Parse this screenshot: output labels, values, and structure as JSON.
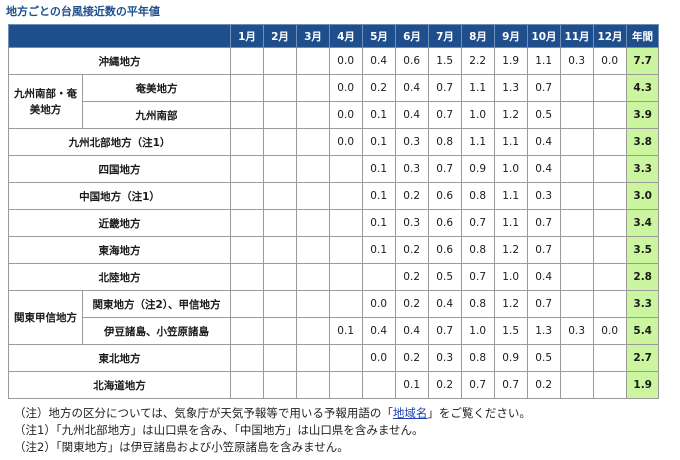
{
  "title": "地方ごとの台風接近数の平年値",
  "table": {
    "header": {
      "blank": "",
      "months": [
        "1月",
        "2月",
        "3月",
        "4月",
        "5月",
        "6月",
        "7月",
        "8月",
        "9月",
        "10月",
        "11月",
        "12月"
      ],
      "total": "年間"
    },
    "rows": [
      {
        "label": "沖縄地方",
        "values": [
          "",
          "",
          "",
          "0.0",
          "0.4",
          "0.6",
          "1.5",
          "2.2",
          "1.9",
          "1.1",
          "0.3",
          "0.0"
        ],
        "total": "7.7"
      },
      {
        "group": "九州南部・奄美地方",
        "label": "奄美地方",
        "values": [
          "",
          "",
          "",
          "0.0",
          "0.2",
          "0.4",
          "0.7",
          "1.1",
          "1.3",
          "0.7",
          "",
          ""
        ],
        "total": "4.3"
      },
      {
        "label": "九州南部",
        "values": [
          "",
          "",
          "",
          "0.0",
          "0.1",
          "0.4",
          "0.7",
          "1.0",
          "1.2",
          "0.5",
          "",
          ""
        ],
        "total": "3.9"
      },
      {
        "label": "九州北部地方（注1）",
        "values": [
          "",
          "",
          "",
          "0.0",
          "0.1",
          "0.3",
          "0.8",
          "1.1",
          "1.1",
          "0.4",
          "",
          ""
        ],
        "total": "3.8"
      },
      {
        "label": "四国地方",
        "values": [
          "",
          "",
          "",
          "",
          "0.1",
          "0.3",
          "0.7",
          "0.9",
          "1.0",
          "0.4",
          "",
          ""
        ],
        "total": "3.3"
      },
      {
        "label": "中国地方（注1）",
        "values": [
          "",
          "",
          "",
          "",
          "0.1",
          "0.2",
          "0.6",
          "0.8",
          "1.1",
          "0.3",
          "",
          ""
        ],
        "total": "3.0"
      },
      {
        "label": "近畿地方",
        "values": [
          "",
          "",
          "",
          "",
          "0.1",
          "0.3",
          "0.6",
          "0.7",
          "1.1",
          "0.7",
          "",
          ""
        ],
        "total": "3.4"
      },
      {
        "label": "東海地方",
        "values": [
          "",
          "",
          "",
          "",
          "0.1",
          "0.2",
          "0.6",
          "0.8",
          "1.2",
          "0.7",
          "",
          ""
        ],
        "total": "3.5"
      },
      {
        "label": "北陸地方",
        "values": [
          "",
          "",
          "",
          "",
          "",
          "0.2",
          "0.5",
          "0.7",
          "1.0",
          "0.4",
          "",
          ""
        ],
        "total": "2.8"
      },
      {
        "group": "関東甲信地方",
        "label": "関東地方（注2）、甲信地方",
        "values": [
          "",
          "",
          "",
          "",
          "0.0",
          "0.2",
          "0.4",
          "0.8",
          "1.2",
          "0.7",
          "",
          ""
        ],
        "total": "3.3"
      },
      {
        "label": "伊豆諸島、小笠原諸島",
        "values": [
          "",
          "",
          "",
          "0.1",
          "0.4",
          "0.4",
          "0.7",
          "1.0",
          "1.5",
          "1.3",
          "0.3",
          "0.0"
        ],
        "total": "5.4"
      },
      {
        "label": "東北地方",
        "values": [
          "",
          "",
          "",
          "",
          "0.0",
          "0.2",
          "0.3",
          "0.8",
          "0.9",
          "0.5",
          "",
          ""
        ],
        "total": "2.7"
      },
      {
        "label": "北海道地方",
        "values": [
          "",
          "",
          "",
          "",
          "",
          "0.1",
          "0.2",
          "0.7",
          "0.7",
          "0.2",
          "",
          ""
        ],
        "total": "1.9"
      }
    ]
  },
  "notes": {
    "note0_prefix": "（注）地方の区分については、気象庁が天気予報等で用いる予報用語の「",
    "note0_link": "地域名",
    "note0_suffix": "」をご覧ください。",
    "note1": "（注1）「九州北部地方」は山口県を含み、「中国地方」は山口県を含みません。",
    "note2": "（注2）「関東地方」は伊豆諸島および小笠原諸島を含みません。"
  }
}
